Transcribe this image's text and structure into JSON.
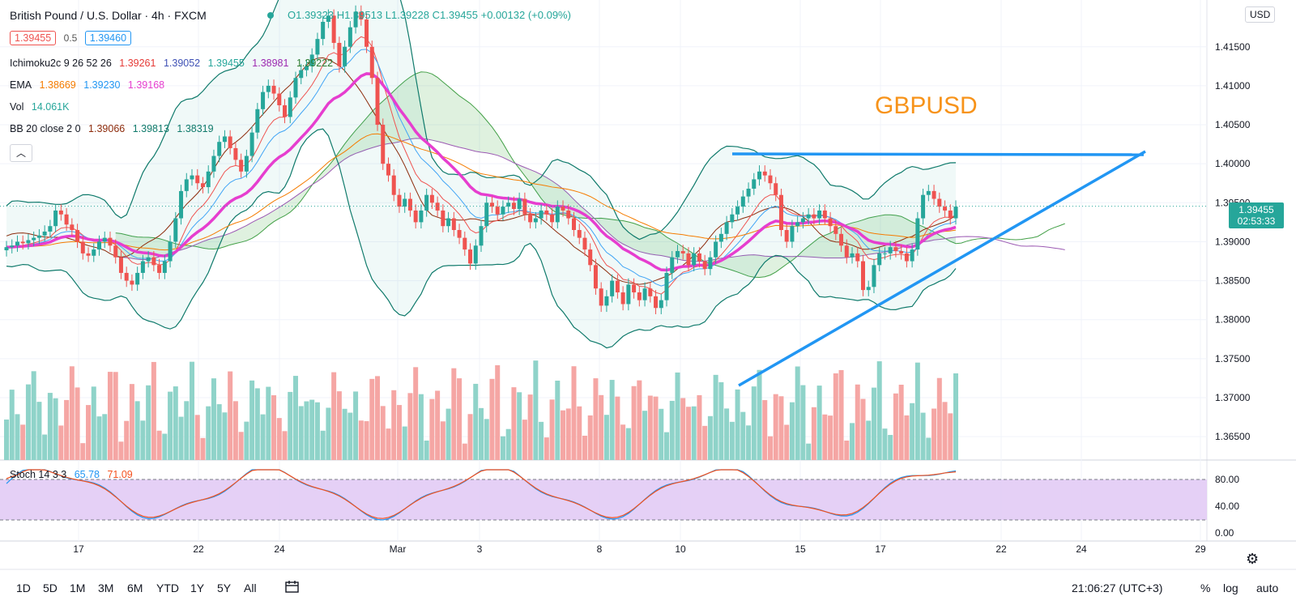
{
  "header": {
    "symbol_title": "British Pound / U.S. Dollar · 4h · FXCM",
    "ohlc": {
      "open": "O1.39323",
      "high": "H1.39513",
      "low": "L1.39228",
      "close": "C1.39455",
      "change": "+0.00132 (+0.09%)"
    },
    "bid": "1.39455",
    "spread": "0.5",
    "ask": "1.39460",
    "currency_button": "USD"
  },
  "indicators": {
    "ichimoku": {
      "name": "Ichimoku2c 9 26 52 26",
      "v1": "1.39261",
      "v2": "1.39052",
      "v3": "1.39455",
      "v4": "1.38981",
      "v5": "1.39222"
    },
    "ema": {
      "name": "EMA",
      "v1": "1.38669",
      "v2": "1.39230",
      "v3": "1.39168"
    },
    "vol": {
      "name": "Vol",
      "v1": "14.061K"
    },
    "bb": {
      "name": "BB 20 close 2 0",
      "v1": "1.39066",
      "v2": "1.39813",
      "v3": "1.38319"
    },
    "stoch": {
      "name": "Stoch 14 3 3",
      "k": "65.78",
      "d": "71.09"
    }
  },
  "annotation": "GBPUSD",
  "price_axis": {
    "ticks": [
      "1.41500",
      "1.41000",
      "1.40500",
      "1.40000",
      "1.39500",
      "1.39000",
      "1.38500",
      "1.38000",
      "1.37500",
      "1.37000",
      "1.36500"
    ],
    "last_price": "1.39455",
    "countdown": "02:53:33"
  },
  "stoch_axis": {
    "ticks": [
      "80.00",
      "40.00",
      "0.00"
    ]
  },
  "time_axis": {
    "ticks": [
      "17",
      "22",
      "24",
      "Mar",
      "3",
      "8",
      "10",
      "15",
      "17",
      "22",
      "24",
      "29"
    ]
  },
  "bottom_bar": {
    "ranges": [
      "1D",
      "5D",
      "1M",
      "3M",
      "6M",
      "YTD",
      "1Y",
      "5Y",
      "All"
    ],
    "clock": "21:06:27 (UTC+3)",
    "pct": "%",
    "log": "log",
    "auto": "auto"
  },
  "colors": {
    "up": "#26a69a",
    "down": "#ef5350",
    "up_vol": "#8fd3c9",
    "down_vol": "#f5a6a4",
    "ema_pink": "#e63ecf",
    "trendline": "#2196f3",
    "annotation": "#f7931a",
    "stoch_fill": "#e1c8f5"
  },
  "chart_data": {
    "type": "candlestick",
    "title": "British Pound / U.S. Dollar · 4h · FXCM",
    "ylim": [
      1.362,
      1.421
    ],
    "close": [
      1.3893,
      1.3895,
      1.39,
      1.3898,
      1.3902,
      1.3905,
      1.3908,
      1.3913,
      1.392,
      1.394,
      1.3935,
      1.3922,
      1.3915,
      1.39,
      1.3885,
      1.3882,
      1.389,
      1.39,
      1.3905,
      1.3895,
      1.388,
      1.386,
      1.385,
      1.3845,
      1.386,
      1.3875,
      1.388,
      1.387,
      1.386,
      1.3875,
      1.39,
      1.393,
      1.3965,
      1.398,
      1.3985,
      1.3975,
      1.397,
      1.399,
      1.401,
      1.4028,
      1.4035,
      1.402,
      1.4005,
      1.399,
      1.401,
      1.404,
      1.407,
      1.4092,
      1.41,
      1.409,
      1.4075,
      1.406,
      1.4085,
      1.411,
      1.412,
      1.4125,
      1.414,
      1.416,
      1.4182,
      1.419,
      1.4155,
      1.4125,
      1.415,
      1.4175,
      1.4195,
      1.4185,
      1.415,
      1.411,
      1.405,
      1.4,
      1.3985,
      1.396,
      1.3945,
      1.3955,
      1.394,
      1.3925,
      1.394,
      1.396,
      1.395,
      1.394,
      1.392,
      1.393,
      1.3915,
      1.3905,
      1.389,
      1.3872,
      1.3895,
      1.392,
      1.395,
      1.3945,
      1.3935,
      1.3945,
      1.395,
      1.3942,
      1.3955,
      1.3935,
      1.3925,
      1.393,
      1.394,
      1.3935,
      1.3925,
      1.3945,
      1.394,
      1.393,
      1.3915,
      1.3905,
      1.389,
      1.387,
      1.384,
      1.3818,
      1.383,
      1.385,
      1.3835,
      1.382,
      1.3845,
      1.3835,
      1.3825,
      1.384,
      1.383,
      1.3815,
      1.3825,
      1.386,
      1.388,
      1.3888,
      1.3885,
      1.387,
      1.3885,
      1.3875,
      1.3865,
      1.388,
      1.39,
      1.391,
      1.3925,
      1.3935,
      1.3945,
      1.3958,
      1.3968,
      1.398,
      1.399,
      1.3985,
      1.3975,
      1.396,
      1.3915,
      1.39,
      1.392,
      1.3925,
      1.393,
      1.3935,
      1.393,
      1.394,
      1.393,
      1.392,
      1.391,
      1.3895,
      1.388,
      1.3885,
      1.3875,
      1.3838,
      1.3842,
      1.387,
      1.3885,
      1.3885,
      1.3893,
      1.3888,
      1.3885,
      1.3875,
      1.389,
      1.393,
      1.396,
      1.3965,
      1.3955,
      1.3945,
      1.394,
      1.393,
      1.3945
    ],
    "volume_scale": [
      0.2,
      1.0
    ]
  }
}
